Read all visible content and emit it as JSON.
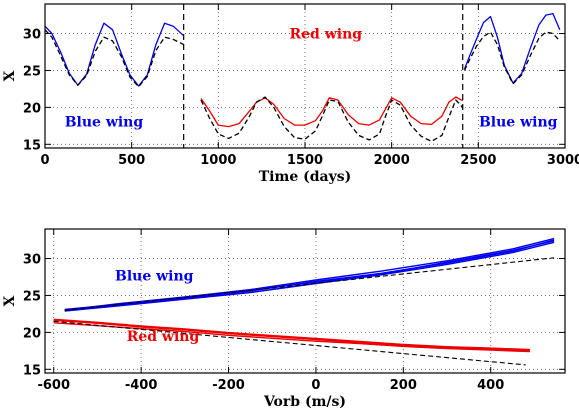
{
  "chart_data": [
    {
      "type": "line",
      "xlabel": "Time (days)",
      "ylabel": "X",
      "xlim": [
        0,
        3000
      ],
      "ylim": [
        14.5,
        34
      ],
      "xticks": [
        0,
        500,
        1000,
        1500,
        2000,
        2500,
        3000
      ],
      "yticks": [
        15,
        20,
        25,
        30
      ],
      "grid": true,
      "vlines": [
        800,
        2410
      ],
      "annotations": [
        {
          "text": "Blue wing",
          "x": 340,
          "y": 17.4,
          "color": "#0000ee"
        },
        {
          "text": "Red wing",
          "x": 1620,
          "y": 29.3,
          "color": "#ee0000"
        },
        {
          "text": "Blue wing",
          "x": 2730,
          "y": 17.4,
          "color": "#0000ee"
        }
      ],
      "series": [
        {
          "color": "#0000ee",
          "dash": false,
          "x": [
            0,
            40,
            90,
            140,
            190,
            240,
            290,
            340,
            390,
            440,
            490,
            540,
            590,
            640,
            690,
            740,
            800
          ],
          "y": [
            31.0,
            30.0,
            27.5,
            24.6,
            23.0,
            24.5,
            28.5,
            31.4,
            30.5,
            27.3,
            24.4,
            22.9,
            24.4,
            28.5,
            31.4,
            31.0,
            29.7
          ]
        },
        {
          "color": "#000000",
          "dash": true,
          "x": [
            0,
            40,
            90,
            140,
            190,
            240,
            290,
            340,
            390,
            440,
            490,
            540,
            590,
            640,
            690,
            740,
            800
          ],
          "y": [
            30.5,
            29.5,
            27.0,
            24.4,
            23.0,
            24.3,
            27.6,
            29.5,
            29.0,
            26.9,
            24.1,
            22.8,
            24.2,
            27.7,
            29.5,
            29.2,
            28.5
          ]
        },
        {
          "color": "#ee0000",
          "dash": false,
          "x": [
            900,
            950,
            1000,
            1060,
            1120,
            1180,
            1220,
            1270,
            1320,
            1380,
            1440,
            1500,
            1560,
            1600,
            1640,
            1690,
            1750,
            1810,
            1870,
            1930,
            1960,
            2000,
            2050,
            2110,
            2170,
            2230,
            2290,
            2330,
            2370,
            2410
          ],
          "y": [
            21.2,
            19.5,
            17.6,
            17.4,
            17.8,
            19.5,
            20.7,
            21.3,
            20.4,
            18.5,
            17.6,
            17.6,
            18.2,
            19.5,
            21.3,
            21.0,
            19.0,
            17.8,
            17.6,
            18.3,
            19.6,
            21.3,
            20.7,
            18.8,
            17.8,
            17.7,
            18.8,
            20.7,
            21.4,
            20.9
          ]
        },
        {
          "color": "#000000",
          "dash": true,
          "x": [
            900,
            950,
            1000,
            1060,
            1120,
            1180,
            1220,
            1270,
            1320,
            1380,
            1440,
            1500,
            1560,
            1600,
            1640,
            1690,
            1750,
            1810,
            1870,
            1930,
            1960,
            2000,
            2050,
            2110,
            2170,
            2230,
            2290,
            2330,
            2370,
            2410
          ],
          "y": [
            21.0,
            18.5,
            16.4,
            15.8,
            16.5,
            18.8,
            20.7,
            21.4,
            20.0,
            17.4,
            15.9,
            15.7,
            16.8,
            18.8,
            21.0,
            20.8,
            18.0,
            16.2,
            15.6,
            16.4,
            18.5,
            21.0,
            20.3,
            17.6,
            16.1,
            15.4,
            16.2,
            18.7,
            21.0,
            20.0
          ]
        },
        {
          "color": "#0000ee",
          "dash": false,
          "x": [
            2420,
            2450,
            2490,
            2530,
            2570,
            2610,
            2650,
            2700,
            2750,
            2800,
            2850,
            2890,
            2930,
            2970
          ],
          "y": [
            25.2,
            27.0,
            29.3,
            31.5,
            32.3,
            29.5,
            25.7,
            23.3,
            24.6,
            28.0,
            31.2,
            32.5,
            32.7,
            30.5
          ]
        },
        {
          "color": "#000000",
          "dash": true,
          "x": [
            2420,
            2450,
            2490,
            2530,
            2570,
            2610,
            2650,
            2700,
            2750,
            2800,
            2850,
            2890,
            2930,
            2970
          ],
          "y": [
            25.0,
            26.5,
            28.3,
            29.6,
            30.2,
            28.5,
            25.5,
            23.2,
            24.4,
            27.0,
            29.4,
            30.2,
            30.0,
            29.0
          ]
        }
      ]
    },
    {
      "type": "line",
      "xlabel": "Vorb (m/s)",
      "ylabel": "X",
      "xlim": [
        -620,
        570
      ],
      "ylim": [
        14.5,
        34
      ],
      "xticks": [
        -600,
        -400,
        -200,
        0,
        200,
        400
      ],
      "yticks": [
        15,
        20,
        25,
        30
      ],
      "grid": true,
      "annotations": [
        {
          "text": "Blue wing",
          "x": -370,
          "y": 27.0,
          "color": "#0000ee"
        },
        {
          "text": "Red wing",
          "x": -350,
          "y": 18.8,
          "color": "#ee0000"
        }
      ],
      "series": [
        {
          "color": "#0000ee",
          "dash": false,
          "width": 1.4,
          "x": [
            -575,
            -450,
            -300,
            -150,
            0,
            150,
            300,
            450,
            545
          ],
          "y": [
            23.0,
            23.9,
            24.8,
            25.8,
            27.1,
            28.3,
            29.7,
            31.3,
            32.7
          ]
        },
        {
          "color": "#0000ee",
          "dash": false,
          "width": 1.4,
          "x": [
            -575,
            -450,
            -300,
            -150,
            0,
            150,
            300,
            450,
            545
          ],
          "y": [
            22.9,
            23.6,
            24.5,
            25.4,
            26.6,
            27.8,
            29.2,
            30.8,
            32.2
          ]
        },
        {
          "color": "#0000ee",
          "dash": false,
          "width": 1.4,
          "x": [
            -575,
            -450,
            -300,
            -150,
            0,
            150,
            300,
            450,
            545
          ],
          "y": [
            23.1,
            23.8,
            24.6,
            25.6,
            26.9,
            28.0,
            29.4,
            31.0,
            32.5
          ]
        },
        {
          "color": "#0000ee",
          "dash": false,
          "width": 1.4,
          "x": [
            -575,
            -450,
            -300,
            -150,
            0,
            150,
            300,
            450,
            545
          ],
          "y": [
            23.0,
            23.7,
            24.7,
            25.7,
            26.8,
            27.9,
            29.5,
            31.1,
            32.4
          ]
        },
        {
          "color": "#ee0000",
          "dash": false,
          "width": 2.4,
          "x": [
            -600,
            -500,
            -400,
            -300,
            -200,
            -100,
            0,
            100,
            200,
            300,
            400,
            490
          ],
          "y": [
            21.7,
            21.3,
            20.8,
            20.4,
            19.9,
            19.5,
            19.1,
            18.7,
            18.3,
            18.0,
            17.8,
            17.6
          ]
        },
        {
          "color": "#ee0000",
          "dash": false,
          "width": 1.4,
          "x": [
            -600,
            -500,
            -400,
            -300,
            -200,
            -100,
            0,
            100,
            200,
            300,
            400,
            490
          ],
          "y": [
            21.3,
            20.9,
            20.5,
            20.1,
            19.6,
            19.2,
            18.8,
            18.5,
            18.1,
            17.8,
            17.6,
            17.4
          ]
        },
        {
          "color": "#000000",
          "dash": true,
          "width": 1.1,
          "x": [
            -575,
            545
          ],
          "y": [
            23.0,
            30.1
          ]
        },
        {
          "color": "#000000",
          "dash": true,
          "width": 1.1,
          "x": [
            -600,
            480
          ],
          "y": [
            21.5,
            15.6
          ]
        }
      ]
    }
  ]
}
